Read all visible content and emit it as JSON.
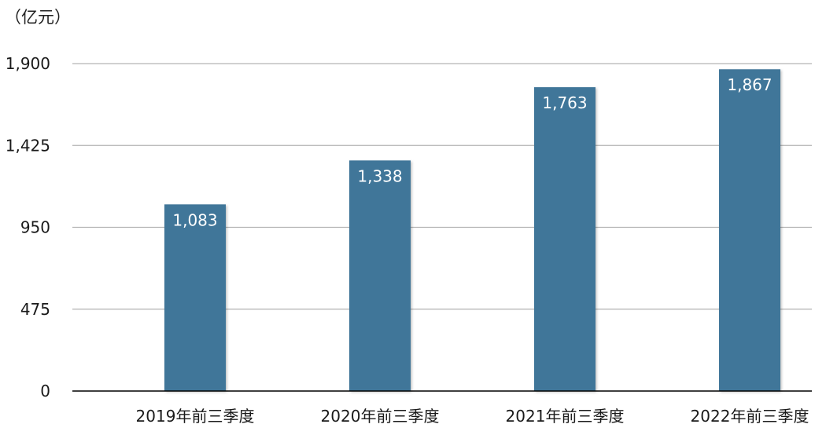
{
  "unit_label": "（亿元）",
  "chart_data": {
    "type": "bar",
    "categories": [
      "2019年前三季度",
      "2020年前三季度",
      "2021年前三季度",
      "2022年前三季度"
    ],
    "values": [
      1083,
      1338,
      1763,
      1867
    ],
    "data_labels": [
      "1,083",
      "1,338",
      "1,763",
      "1,867"
    ],
    "title": "",
    "xlabel": "",
    "ylabel": "",
    "ylim": [
      0,
      1900
    ],
    "yticks": [
      0,
      475,
      950,
      1425,
      1900
    ],
    "ytick_labels": [
      "0",
      "475",
      "950",
      "1,425",
      "1,900"
    ],
    "grid": true,
    "legend": "none",
    "colors": {
      "bar": "#417699",
      "grid": "#b3b3b3",
      "axis": "#000000"
    }
  }
}
